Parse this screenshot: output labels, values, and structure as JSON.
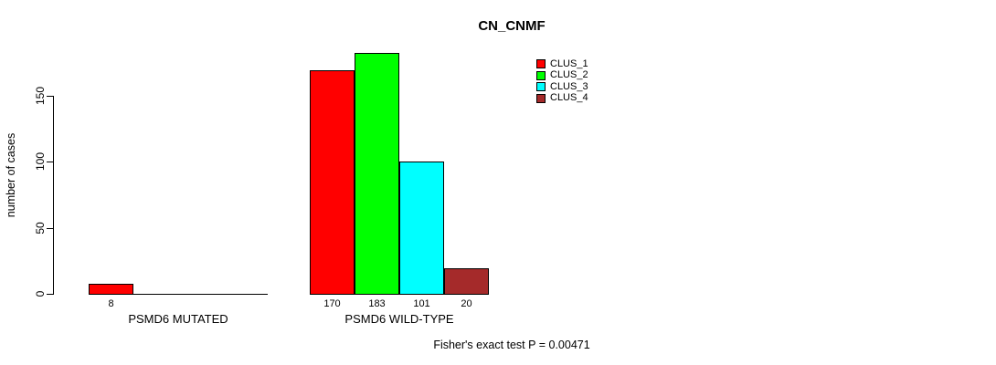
{
  "chart_data": {
    "type": "bar",
    "title": "CN_CNMF",
    "ylabel": "number of cases",
    "xlabel": "",
    "footnote": "Fisher's exact test P = 0.00471",
    "grid": false,
    "legend_position": "top-right",
    "ylim": [
      0,
      190
    ],
    "yticks": [
      0,
      50,
      100,
      150
    ],
    "series": [
      {
        "name": "CLUS_1",
        "color": "#ff0000"
      },
      {
        "name": "CLUS_2",
        "color": "#00ff00"
      },
      {
        "name": "CLUS_3",
        "color": "#00ffff"
      },
      {
        "name": "CLUS_4",
        "color": "#a52a2a"
      }
    ],
    "groups": [
      {
        "label": "PSMD6 MUTATED",
        "values": [
          8,
          0,
          0,
          0
        ]
      },
      {
        "label": "PSMD6 WILD-TYPE",
        "values": [
          170,
          183,
          101,
          20
        ]
      }
    ]
  }
}
